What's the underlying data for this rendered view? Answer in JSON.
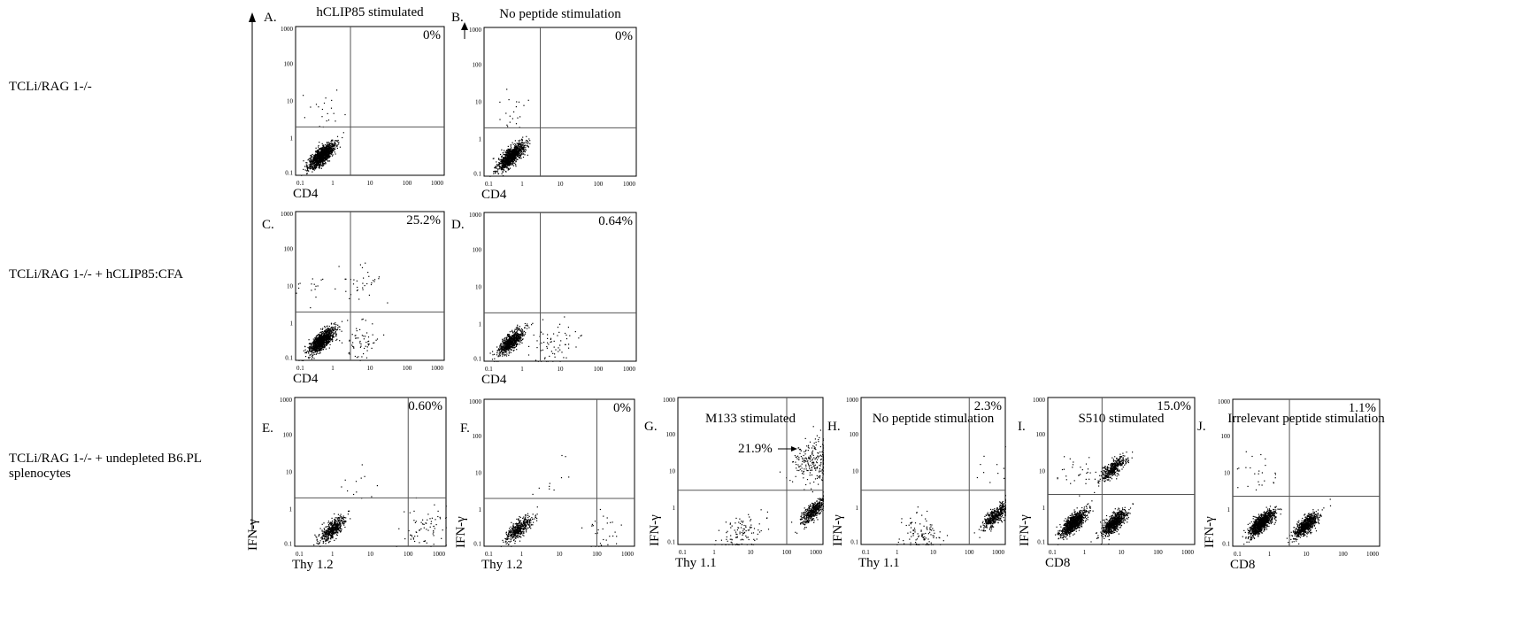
{
  "rows": [
    {
      "label": "TCLi/RAG 1-/-"
    },
    {
      "label": "TCLi/RAG 1-/- + hCLIP85:CFA"
    },
    {
      "label": "TCLi/RAG 1-/- + undepleted B6.PL splenocytes"
    }
  ],
  "axis_ticks": [
    "0.1",
    "1",
    "10",
    "100",
    "1000"
  ],
  "shared_y_label": "IFN-γ",
  "panels": [
    {
      "letter": "A.",
      "title": "hCLIP85 stimulated",
      "xlabel": "CD4",
      "ylabel": "",
      "annotation": "0%",
      "arrow_label": ""
    },
    {
      "letter": "B.",
      "title": "No peptide stimulation",
      "xlabel": "CD4",
      "ylabel": "",
      "annotation": "0%",
      "arrow_label": ""
    },
    {
      "letter": "C.",
      "title": "",
      "xlabel": "CD4",
      "ylabel": "",
      "annotation": "25.2%",
      "arrow_label": ""
    },
    {
      "letter": "D.",
      "title": "",
      "xlabel": "CD4",
      "ylabel": "",
      "annotation": "0.64%",
      "arrow_label": ""
    },
    {
      "letter": "E.",
      "title": "",
      "xlabel": "Thy 1.2",
      "ylabel": "",
      "annotation": "0.60%",
      "arrow_label": ""
    },
    {
      "letter": "F.",
      "title": "",
      "xlabel": "Thy 1.2",
      "ylabel": "IFN-γ",
      "annotation": "0%",
      "arrow_label": ""
    },
    {
      "letter": "G.",
      "title": "M133 stimulated",
      "xlabel": "Thy 1.1",
      "ylabel": "IFN-γ",
      "annotation": "",
      "arrow_label": "21.9%"
    },
    {
      "letter": "H.",
      "title": "No peptide stimulation",
      "xlabel": "Thy 1.1",
      "ylabel": "IFN-γ",
      "annotation": "2.3%",
      "arrow_label": ""
    },
    {
      "letter": "I.",
      "title": "S510 stimulated",
      "xlabel": "CD8",
      "ylabel": "IFN-γ",
      "annotation": "15.0%",
      "arrow_label": ""
    },
    {
      "letter": "J.",
      "title": "Irrelevant peptide stimulation",
      "xlabel": "CD8",
      "ylabel": "IFN-γ",
      "annotation": "1.1%",
      "arrow_label": ""
    }
  ],
  "chart_data": [
    {
      "type": "scatter",
      "panel": "A",
      "title": "hCLIP85 stimulated",
      "xlabel": "CD4",
      "ylabel": "IFN-γ",
      "scale": "log",
      "xlim": [
        0.1,
        1000
      ],
      "ylim": [
        0.1,
        1000
      ],
      "quadrant_gate": {
        "x": 3,
        "y": 2
      },
      "populations": [
        {
          "cx": 0.5,
          "cy": 0.35,
          "n": 1200
        },
        {
          "cx": 0.5,
          "cy": 6,
          "n": 20
        }
      ],
      "upper_right_percent": "0%"
    },
    {
      "type": "scatter",
      "panel": "B",
      "title": "No peptide stimulation",
      "xlabel": "CD4",
      "ylabel": "IFN-γ",
      "scale": "log",
      "xlim": [
        0.1,
        1000
      ],
      "ylim": [
        0.1,
        1000
      ],
      "quadrant_gate": {
        "x": 3,
        "y": 2
      },
      "populations": [
        {
          "cx": 0.5,
          "cy": 0.35,
          "n": 1100
        },
        {
          "cx": 0.5,
          "cy": 6,
          "n": 20
        }
      ],
      "upper_right_percent": "0%"
    },
    {
      "type": "scatter",
      "panel": "C",
      "xlabel": "CD4",
      "ylabel": "IFN-γ",
      "scale": "log",
      "xlim": [
        0.1,
        1000
      ],
      "ylim": [
        0.1,
        1000
      ],
      "quadrant_gate": {
        "x": 3,
        "y": 2
      },
      "populations": [
        {
          "cx": 0.5,
          "cy": 0.35,
          "n": 1100
        },
        {
          "cx": 5,
          "cy": 0.3,
          "n": 60
        },
        {
          "cx": 5,
          "cy": 12,
          "n": 35
        },
        {
          "cx": 0.3,
          "cy": 12,
          "n": 15
        }
      ],
      "upper_right_percent": "25.2%"
    },
    {
      "type": "scatter",
      "panel": "D",
      "xlabel": "CD4",
      "ylabel": "IFN-γ",
      "scale": "log",
      "xlim": [
        0.1,
        1000
      ],
      "ylim": [
        0.1,
        1000
      ],
      "quadrant_gate": {
        "x": 3,
        "y": 2
      },
      "populations": [
        {
          "cx": 0.5,
          "cy": 0.35,
          "n": 700
        },
        {
          "cx": 6,
          "cy": 0.25,
          "n": 70
        }
      ],
      "upper_right_percent": "0.64%"
    },
    {
      "type": "scatter",
      "panel": "E",
      "xlabel": "Thy 1.2",
      "ylabel": "IFN-γ",
      "scale": "log",
      "xlim": [
        0.1,
        1000
      ],
      "ylim": [
        0.1,
        1000
      ],
      "quadrant_gate": {
        "x": 100,
        "y": 2
      },
      "populations": [
        {
          "cx": 1,
          "cy": 0.3,
          "n": 500
        },
        {
          "cx": 250,
          "cy": 0.3,
          "n": 70
        },
        {
          "cx": 3,
          "cy": 5,
          "n": 12
        }
      ],
      "upper_right_percent": "0.60%"
    },
    {
      "type": "scatter",
      "panel": "F",
      "xlabel": "Thy 1.2",
      "ylabel": "IFN-γ",
      "scale": "log",
      "xlim": [
        0.1,
        1000
      ],
      "ylim": [
        0.1,
        1000
      ],
      "quadrant_gate": {
        "x": 100,
        "y": 2
      },
      "populations": [
        {
          "cx": 0.8,
          "cy": 0.3,
          "n": 450
        },
        {
          "cx": 150,
          "cy": 0.3,
          "n": 30
        },
        {
          "cx": 5,
          "cy": 5,
          "n": 10
        }
      ],
      "upper_right_percent": "0%"
    },
    {
      "type": "scatter",
      "panel": "G",
      "title": "M133 stimulated",
      "xlabel": "Thy 1.1",
      "ylabel": "IFN-γ",
      "scale": "log",
      "xlim": [
        0.1,
        1000
      ],
      "ylim": [
        0.1,
        1000
      ],
      "quadrant_gate": {
        "x": 100,
        "y": 3
      },
      "populations": [
        {
          "cx": 500,
          "cy": 0.8,
          "n": 450
        },
        {
          "cx": 500,
          "cy": 20,
          "n": 230
        },
        {
          "cx": 5,
          "cy": 0.2,
          "n": 110
        }
      ],
      "upper_right_percent": "21.9%"
    },
    {
      "type": "scatter",
      "panel": "H",
      "title": "No peptide stimulation",
      "xlabel": "Thy 1.1",
      "ylabel": "IFN-γ",
      "scale": "log",
      "xlim": [
        0.1,
        1000
      ],
      "ylim": [
        0.1,
        1000
      ],
      "quadrant_gate": {
        "x": 100,
        "y": 3
      },
      "populations": [
        {
          "cx": 500,
          "cy": 0.6,
          "n": 450
        },
        {
          "cx": 5,
          "cy": 0.2,
          "n": 110
        },
        {
          "cx": 500,
          "cy": 10,
          "n": 10
        }
      ],
      "upper_right_percent": "2.3%"
    },
    {
      "type": "scatter",
      "panel": "I",
      "title": "S510 stimulated",
      "xlabel": "CD8",
      "ylabel": "IFN-γ",
      "scale": "log",
      "xlim": [
        0.1,
        1000
      ],
      "ylim": [
        0.1,
        1000
      ],
      "quadrant_gate": {
        "x": 3,
        "y": 2.3
      },
      "populations": [
        {
          "cx": 0.5,
          "cy": 0.4,
          "n": 1000
        },
        {
          "cx": 6,
          "cy": 0.4,
          "n": 750
        },
        {
          "cx": 6,
          "cy": 12,
          "n": 400
        },
        {
          "cx": 0.6,
          "cy": 8,
          "n": 30
        }
      ],
      "upper_right_percent": "15.0%"
    },
    {
      "type": "scatter",
      "panel": "J",
      "title": "Irrelevant peptide stimulation",
      "xlabel": "CD8",
      "ylabel": "IFN-γ",
      "scale": "log",
      "xlim": [
        0.1,
        1000
      ],
      "ylim": [
        0.1,
        1000
      ],
      "quadrant_gate": {
        "x": 3.5,
        "y": 2.3
      },
      "populations": [
        {
          "cx": 0.6,
          "cy": 0.45,
          "n": 1000
        },
        {
          "cx": 10,
          "cy": 0.4,
          "n": 700
        },
        {
          "cx": 0.5,
          "cy": 8,
          "n": 25
        }
      ],
      "upper_right_percent": "1.1%"
    }
  ]
}
